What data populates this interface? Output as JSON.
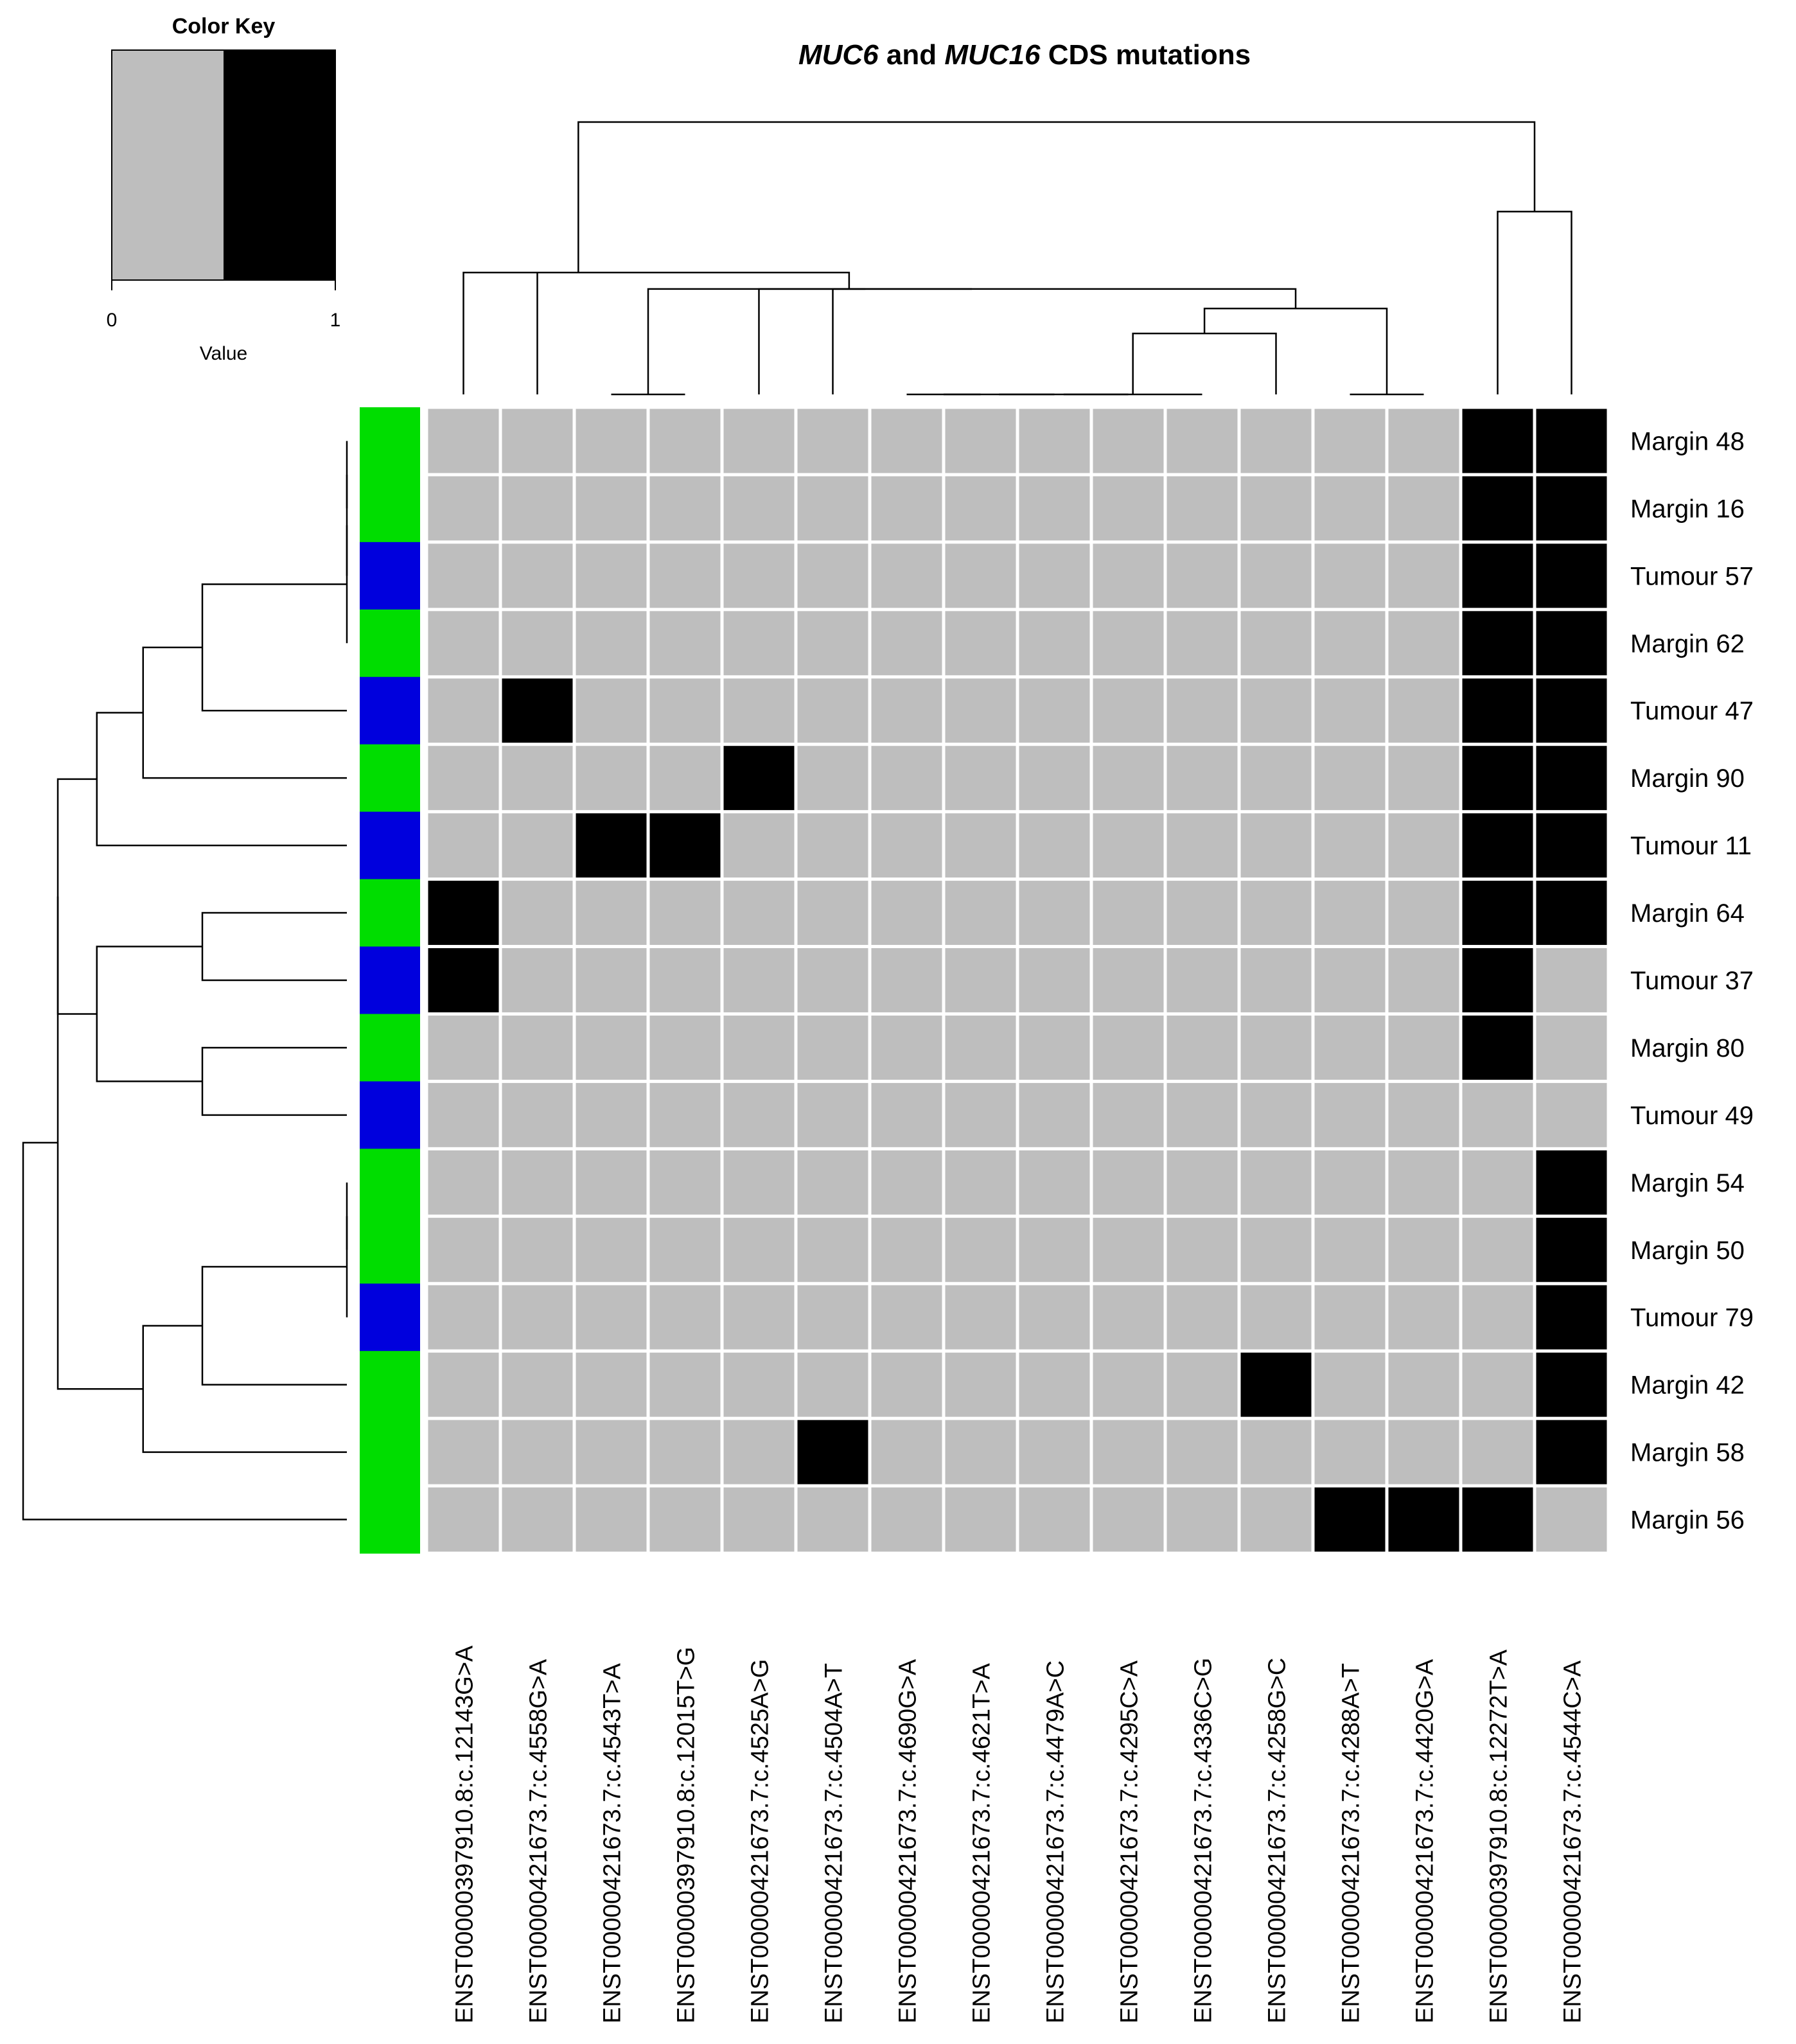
{
  "chart_data": {
    "type": "heatmap",
    "title": {
      "parts": [
        {
          "text": "MUC6",
          "italic": true
        },
        {
          "text": " and ",
          "italic": false
        },
        {
          "text": "MUC16",
          "italic": true
        },
        {
          "text": " CDS mutations",
          "italic": false
        }
      ]
    },
    "colors": {
      "zero": "#bebebe",
      "one": "#000000",
      "margin": "#00dd00",
      "tumour": "#0000dd",
      "gap": "#ffffff"
    },
    "color_key": {
      "title": "Color Key",
      "xlabel": "Value",
      "ticks": [
        "0",
        "1"
      ],
      "range": [
        0,
        1
      ],
      "bins": [
        {
          "from": 0,
          "to": 0.5,
          "color": "#bebebe"
        },
        {
          "from": 0.5,
          "to": 1,
          "color": "#000000"
        }
      ]
    },
    "rows": [
      {
        "label": "Margin 48",
        "group": "margin"
      },
      {
        "label": "Margin 16",
        "group": "margin"
      },
      {
        "label": "Tumour 57",
        "group": "tumour"
      },
      {
        "label": "Margin 62",
        "group": "margin"
      },
      {
        "label": "Tumour 47",
        "group": "tumour"
      },
      {
        "label": "Margin 90",
        "group": "margin"
      },
      {
        "label": "Tumour 11",
        "group": "tumour"
      },
      {
        "label": "Margin 64",
        "group": "margin"
      },
      {
        "label": "Tumour 37",
        "group": "tumour"
      },
      {
        "label": "Margin 80",
        "group": "margin"
      },
      {
        "label": "Tumour 49",
        "group": "tumour"
      },
      {
        "label": "Margin 54",
        "group": "margin"
      },
      {
        "label": "Margin 50",
        "group": "margin"
      },
      {
        "label": "Tumour 79",
        "group": "tumour"
      },
      {
        "label": "Margin 42",
        "group": "margin"
      },
      {
        "label": "Margin 58",
        "group": "margin"
      },
      {
        "label": "Margin 56",
        "group": "margin"
      }
    ],
    "columns": [
      "ENST00000397910.8:c.12143G>A",
      "ENST00000421673.7:c.4558G>A",
      "ENST00000421673.7:c.4543T>A",
      "ENST00000397910.8:c.12015T>G",
      "ENST00000421673.7:c.4525A>G",
      "ENST00000421673.7:c.4504A>T",
      "ENST00000421673.7:c.4690G>A",
      "ENST00000421673.7:c.4621T>A",
      "ENST00000421673.7:c.4479A>C",
      "ENST00000421673.7:c.4295C>A",
      "ENST00000421673.7:c.4336C>G",
      "ENST00000421673.7:c.4258G>C",
      "ENST00000421673.7:c.4288A>T",
      "ENST00000421673.7:c.4420G>A",
      "ENST00000397910.8:c.12272T>A",
      "ENST00000421673.7:c.4544C>A"
    ],
    "values": [
      [
        0,
        0,
        0,
        0,
        0,
        0,
        0,
        0,
        0,
        0,
        0,
        0,
        0,
        0,
        1,
        1
      ],
      [
        0,
        0,
        0,
        0,
        0,
        0,
        0,
        0,
        0,
        0,
        0,
        0,
        0,
        0,
        1,
        1
      ],
      [
        0,
        0,
        0,
        0,
        0,
        0,
        0,
        0,
        0,
        0,
        0,
        0,
        0,
        0,
        1,
        1
      ],
      [
        0,
        0,
        0,
        0,
        0,
        0,
        0,
        0,
        0,
        0,
        0,
        0,
        0,
        0,
        1,
        1
      ],
      [
        0,
        1,
        0,
        0,
        0,
        0,
        0,
        0,
        0,
        0,
        0,
        0,
        0,
        0,
        1,
        1
      ],
      [
        0,
        0,
        0,
        0,
        1,
        0,
        0,
        0,
        0,
        0,
        0,
        0,
        0,
        0,
        1,
        1
      ],
      [
        0,
        0,
        1,
        1,
        0,
        0,
        0,
        0,
        0,
        0,
        0,
        0,
        0,
        0,
        1,
        1
      ],
      [
        1,
        0,
        0,
        0,
        0,
        0,
        0,
        0,
        0,
        0,
        0,
        0,
        0,
        0,
        1,
        1
      ],
      [
        1,
        0,
        0,
        0,
        0,
        0,
        0,
        0,
        0,
        0,
        0,
        0,
        0,
        0,
        1,
        0
      ],
      [
        0,
        0,
        0,
        0,
        0,
        0,
        0,
        0,
        0,
        0,
        0,
        0,
        0,
        0,
        1,
        0
      ],
      [
        0,
        0,
        0,
        0,
        0,
        0,
        0,
        0,
        0,
        0,
        0,
        0,
        0,
        0,
        0,
        0
      ],
      [
        0,
        0,
        0,
        0,
        0,
        0,
        0,
        0,
        0,
        0,
        0,
        0,
        0,
        0,
        0,
        1
      ],
      [
        0,
        0,
        0,
        0,
        0,
        0,
        0,
        0,
        0,
        0,
        0,
        0,
        0,
        0,
        0,
        1
      ],
      [
        0,
        0,
        0,
        0,
        0,
        0,
        0,
        0,
        0,
        0,
        0,
        0,
        0,
        0,
        0,
        1
      ],
      [
        0,
        0,
        0,
        0,
        0,
        0,
        0,
        0,
        0,
        0,
        0,
        1,
        0,
        0,
        0,
        1
      ],
      [
        0,
        0,
        0,
        0,
        0,
        1,
        0,
        0,
        0,
        0,
        0,
        0,
        0,
        0,
        0,
        1
      ],
      [
        0,
        0,
        0,
        0,
        0,
        0,
        0,
        0,
        0,
        0,
        0,
        0,
        1,
        1,
        1,
        0
      ]
    ],
    "row_dendrogram": [
      {
        "a": 0,
        "b": 1,
        "h": 0.0
      },
      {
        "a": 17,
        "b": 2,
        "h": 0.0
      },
      {
        "a": 18,
        "b": 3,
        "h": 0.0
      },
      {
        "a": 19,
        "b": 4,
        "h": 1.0
      },
      {
        "a": 20,
        "b": 5,
        "h": 1.41
      },
      {
        "a": 21,
        "b": 6,
        "h": 1.73
      },
      {
        "a": 7,
        "b": 8,
        "h": 1.0
      },
      {
        "a": 9,
        "b": 10,
        "h": 1.0
      },
      {
        "a": 23,
        "b": 24,
        "h": 1.73
      },
      {
        "a": 22,
        "b": 25,
        "h": 2.0
      },
      {
        "a": 11,
        "b": 12,
        "h": 0.0
      },
      {
        "a": 27,
        "b": 13,
        "h": 0.0
      },
      {
        "a": 28,
        "b": 14,
        "h": 1.0
      },
      {
        "a": 29,
        "b": 15,
        "h": 1.41
      },
      {
        "a": 26,
        "b": 30,
        "h": 2.0
      },
      {
        "a": 31,
        "b": 16,
        "h": 2.24
      }
    ],
    "col_dendrogram": [
      {
        "a": 2,
        "b": 3,
        "h": 0.0
      },
      {
        "a": 6,
        "b": 7,
        "h": 0.0
      },
      {
        "a": 17,
        "b": 8,
        "h": 0.0
      },
      {
        "a": 18,
        "b": 9,
        "h": 0.0
      },
      {
        "a": 19,
        "b": 10,
        "h": 0.0
      },
      {
        "a": 20,
        "b": 11,
        "h": 1.0
      },
      {
        "a": 12,
        "b": 13,
        "h": 0.0
      },
      {
        "a": 21,
        "b": 22,
        "h": 1.41
      },
      {
        "a": 16,
        "b": 23,
        "h": 1.73
      },
      {
        "a": 24,
        "b": 4,
        "h": 1.73
      },
      {
        "a": 25,
        "b": 5,
        "h": 1.73
      },
      {
        "a": 1,
        "b": 26,
        "h": 2.0
      },
      {
        "a": 0,
        "b": 27,
        "h": 2.0
      },
      {
        "a": 14,
        "b": 15,
        "h": 3.0
      },
      {
        "a": 28,
        "b": 29,
        "h": 4.47
      }
    ]
  }
}
